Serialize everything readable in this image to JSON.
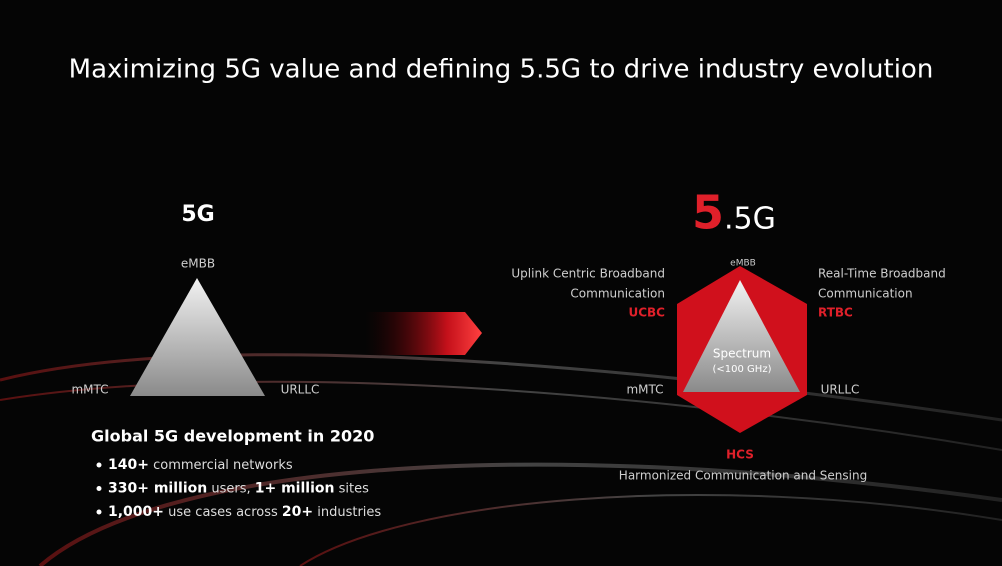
{
  "title": "Maximizing 5G value and defining 5.5G to drive industry evolution",
  "left": {
    "label": "5G",
    "top": "eMBB",
    "left": "mMTC",
    "right": "URLLC",
    "stats": {
      "heading": "Global 5G development in 2020",
      "bullets": [
        [
          {
            "text": "140+",
            "bold": true
          },
          {
            "text": " commercial networks",
            "bold": false
          }
        ],
        [
          {
            "text": "330+ million",
            "bold": true
          },
          {
            "text": " users, ",
            "bold": false
          },
          {
            "text": "1+ million",
            "bold": true
          },
          {
            "text": " sites",
            "bold": false
          }
        ],
        [
          {
            "text": "1,000+",
            "bold": true
          },
          {
            "text": " use cases across ",
            "bold": false
          },
          {
            "text": "20+",
            "bold": true
          },
          {
            "text": " industries",
            "bold": false
          }
        ]
      ]
    }
  },
  "right": {
    "label_parts": [
      "5",
      ".5G"
    ],
    "top": "eMBB",
    "left": "mMTC",
    "right": "URLLC",
    "center": [
      "Spectrum",
      "(<100 GHz)"
    ],
    "upper_left": {
      "lines": [
        "Uplink Centric Broadband",
        "Communication"
      ],
      "abbr": "UCBC"
    },
    "upper_right": {
      "lines": [
        "Real-Time Broadband",
        "Communication"
      ],
      "abbr": "RTBC"
    },
    "bottom": {
      "abbr": "HCS",
      "text": "Harmonized Communication and Sensing"
    }
  }
}
